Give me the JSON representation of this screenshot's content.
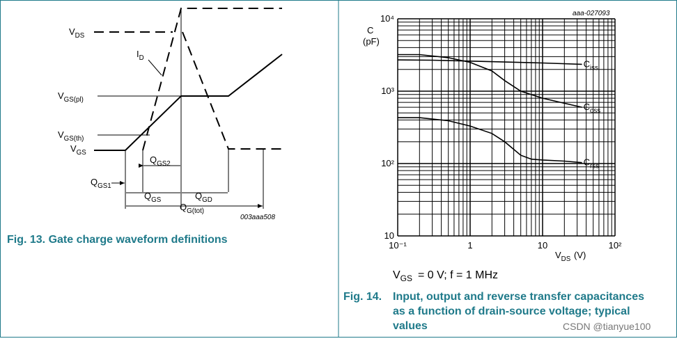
{
  "left_figure": {
    "labels": {
      "vds": "VDS",
      "id": "ID",
      "vgs_pl": "VGS(pl)",
      "vgs_th": "VGS(th)",
      "vgs": "VGS",
      "qgs2": "QGS2",
      "qgs1": "QGS1",
      "qgs": "QGS",
      "qgd": "QGD",
      "qg_tot": "QG(tot)"
    },
    "code": "003aaa508",
    "caption": "Fig. 13.  Gate charge waveform definitions"
  },
  "chart_data": {
    "type": "line",
    "code": "aaa-027093",
    "y_label": [
      "C",
      "(pF)"
    ],
    "x_label_symbol": "VDS",
    "x_label_unit": "(V)",
    "xlim": [
      0.1,
      100
    ],
    "ylim": [
      10,
      10000
    ],
    "log_x": true,
    "log_y": true,
    "grid": true,
    "xticks": [
      {
        "value": 0.1,
        "label": "10⁻¹"
      },
      1,
      10,
      {
        "value": 100,
        "label": "10²"
      }
    ],
    "yticks": [
      10,
      {
        "value": 100,
        "label": "10²"
      },
      {
        "value": 1000,
        "label": "10³"
      },
      {
        "value": 10000,
        "label": "10⁴"
      }
    ],
    "series": [
      {
        "name": "Ciss",
        "color": "#000000",
        "x": [
          0.1,
          0.3,
          1,
          3,
          10,
          35
        ],
        "values": [
          2700,
          2680,
          2600,
          2530,
          2450,
          2350
        ]
      },
      {
        "name": "Coss",
        "color": "#000000",
        "x": [
          0.1,
          0.2,
          0.5,
          1,
          2,
          3,
          5,
          10,
          20,
          35
        ],
        "values": [
          3200,
          3200,
          2900,
          2500,
          1900,
          1400,
          1000,
          800,
          680,
          600
        ]
      },
      {
        "name": "Crss",
        "color": "#000000",
        "x": [
          0.1,
          0.2,
          0.5,
          1,
          2,
          3,
          5,
          7,
          10,
          20,
          35
        ],
        "values": [
          430,
          430,
          390,
          330,
          260,
          200,
          130,
          115,
          112,
          108,
          103
        ]
      }
    ],
    "conditions_symbol": "VGS",
    "conditions_rest": "= 0 V; f = 1 MHz",
    "caption_number": "Fig. 14.",
    "caption_lines": [
      "Input, output and reverse transfer capacitances",
      "as a function of drain-source voltage; typical",
      "values"
    ]
  },
  "watermark": "CSDN @tianyue100"
}
